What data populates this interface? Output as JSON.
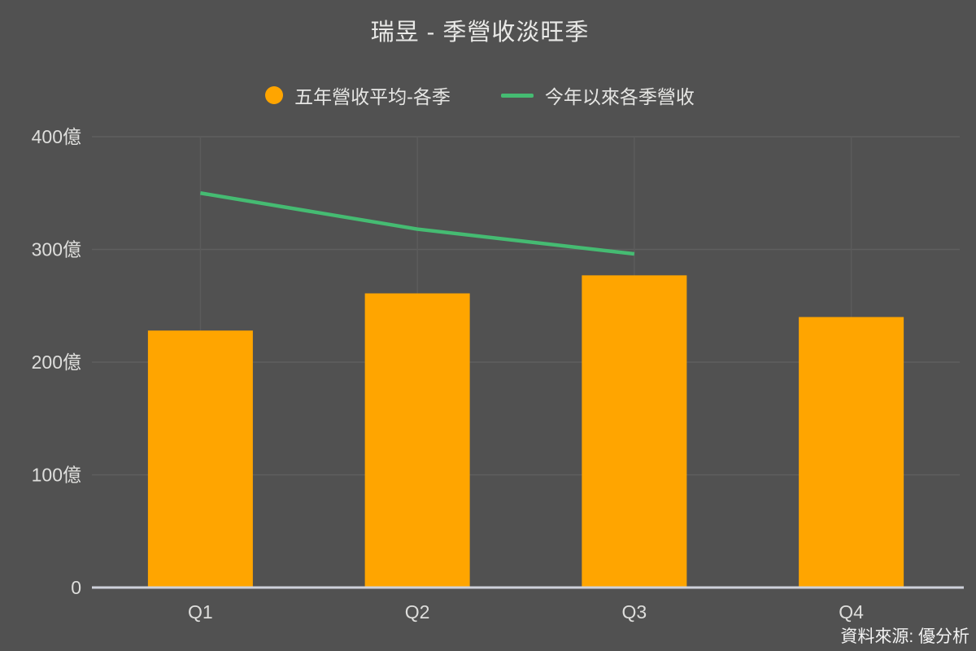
{
  "title": "瑞昱 - 季營收淡旺季",
  "source_note": "資料來源: 優分析",
  "legend": {
    "items": [
      {
        "label": "五年營收平均-各季",
        "marker": "circle",
        "color": "#FFA500"
      },
      {
        "label": "今年以來各季營收",
        "marker": "line",
        "color": "#45BB72"
      }
    ],
    "position": "top-center"
  },
  "colors": {
    "background": "#515151",
    "bar": "#FFA500",
    "line": "#45BB72",
    "grid_horizontal": "#5f5f5f",
    "grid_vertical": "#5b5b5b",
    "axis_baseline": "#ced1db",
    "text": "#e6e6e4"
  },
  "chart_data": {
    "type": "bar",
    "subtype": "bar-with-line-overlay",
    "title": "瑞昱 - 季營收淡旺季",
    "categories": [
      "Q1",
      "Q2",
      "Q3",
      "Q4"
    ],
    "series": [
      {
        "name": "五年營收平均-各季",
        "type": "bar",
        "color": "#FFA500",
        "values": [
          228,
          261,
          277,
          240
        ]
      },
      {
        "name": "今年以來各季營收",
        "type": "line",
        "color": "#45BB72",
        "values": [
          350,
          318,
          296,
          null
        ]
      }
    ],
    "xlabel": "",
    "ylabel": "",
    "unit": "億",
    "ylim": [
      0,
      400
    ],
    "yticks": [
      {
        "value": 0,
        "label": "0"
      },
      {
        "value": 100,
        "label": "100億"
      },
      {
        "value": 200,
        "label": "200億"
      },
      {
        "value": 300,
        "label": "300億"
      },
      {
        "value": 400,
        "label": "400億"
      }
    ],
    "grid": true,
    "legend_position": "top"
  }
}
